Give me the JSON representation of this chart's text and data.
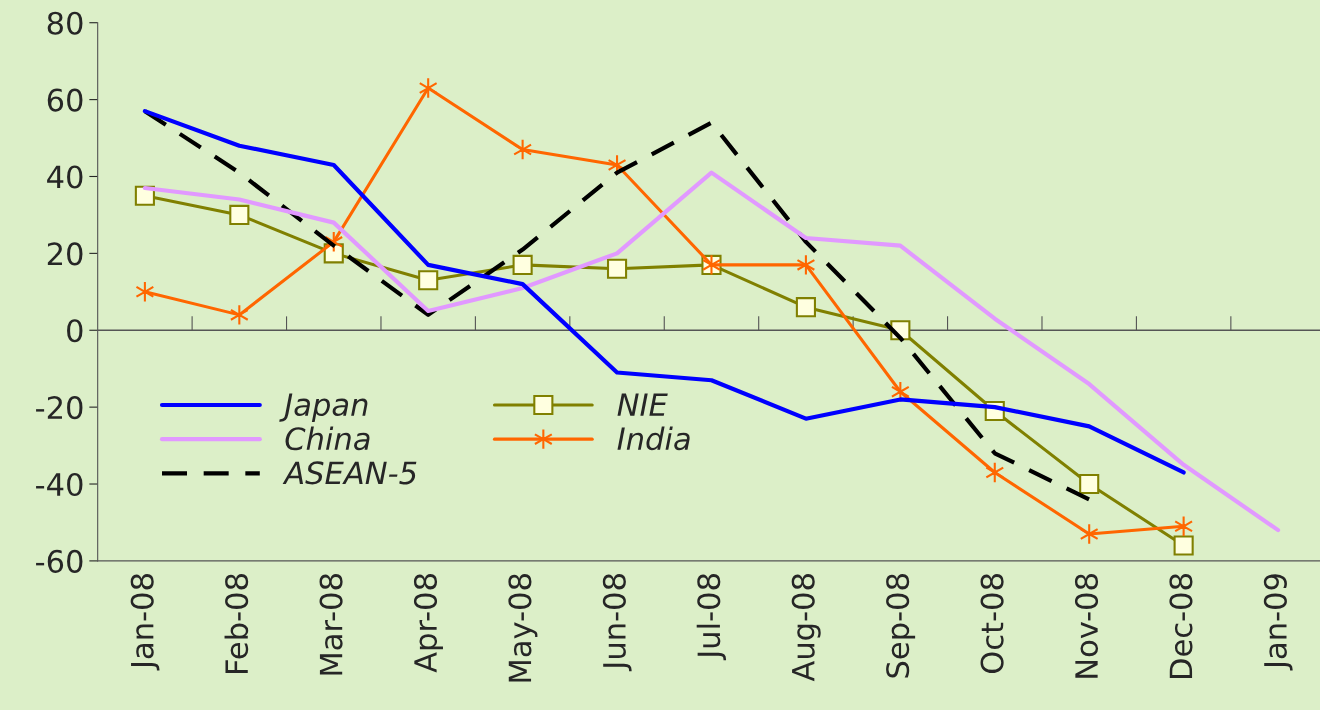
{
  "chart_data": {
    "type": "line",
    "categories": [
      "Jan-08",
      "Feb-08",
      "Mar-08",
      "Apr-08",
      "May-08",
      "Jun-08",
      "Jul-08",
      "Aug-08",
      "Sep-08",
      "Oct-08",
      "Nov-08",
      "Dec-08",
      "Jan-09"
    ],
    "ylim": [
      -60,
      80
    ],
    "yticks": [
      -60,
      -40,
      -20,
      0,
      20,
      40,
      60,
      80
    ],
    "ref_lines": [
      {
        "axis": "y",
        "value": 0,
        "color": "#555555"
      }
    ],
    "legend": "bottom left",
    "series": [
      {
        "name": "Japan",
        "color": "#0000ff",
        "line_style": "solid",
        "marker": "none",
        "values": [
          57,
          48,
          43,
          17,
          12,
          -11,
          -13,
          -23,
          -18,
          -20,
          -25,
          -37,
          null
        ]
      },
      {
        "name": "China",
        "color": "#e199ff",
        "line_style": "solid",
        "marker": "none",
        "values": [
          37,
          34,
          28,
          5,
          11,
          20,
          41,
          24,
          22,
          3,
          -14,
          -35,
          -52
        ]
      },
      {
        "name": "ASEAN-5",
        "color": "#000000",
        "line_style": "dashed",
        "marker": "none",
        "values": [
          57,
          41,
          22,
          4,
          21,
          41,
          54,
          23,
          -2,
          -32,
          -44,
          null,
          null
        ]
      },
      {
        "name": "NIE",
        "color": "#808000",
        "line_style": "solid",
        "marker": "square",
        "values": [
          35,
          30,
          20,
          13,
          17,
          16,
          17,
          6,
          0,
          -21,
          -40,
          -56,
          null
        ]
      },
      {
        "name": "India",
        "color": "#ff6600",
        "line_style": "solid",
        "marker": "cross",
        "values": [
          10,
          4,
          23,
          63,
          47,
          43,
          17,
          17,
          -16,
          -37,
          -53,
          -51,
          null
        ]
      }
    ]
  }
}
